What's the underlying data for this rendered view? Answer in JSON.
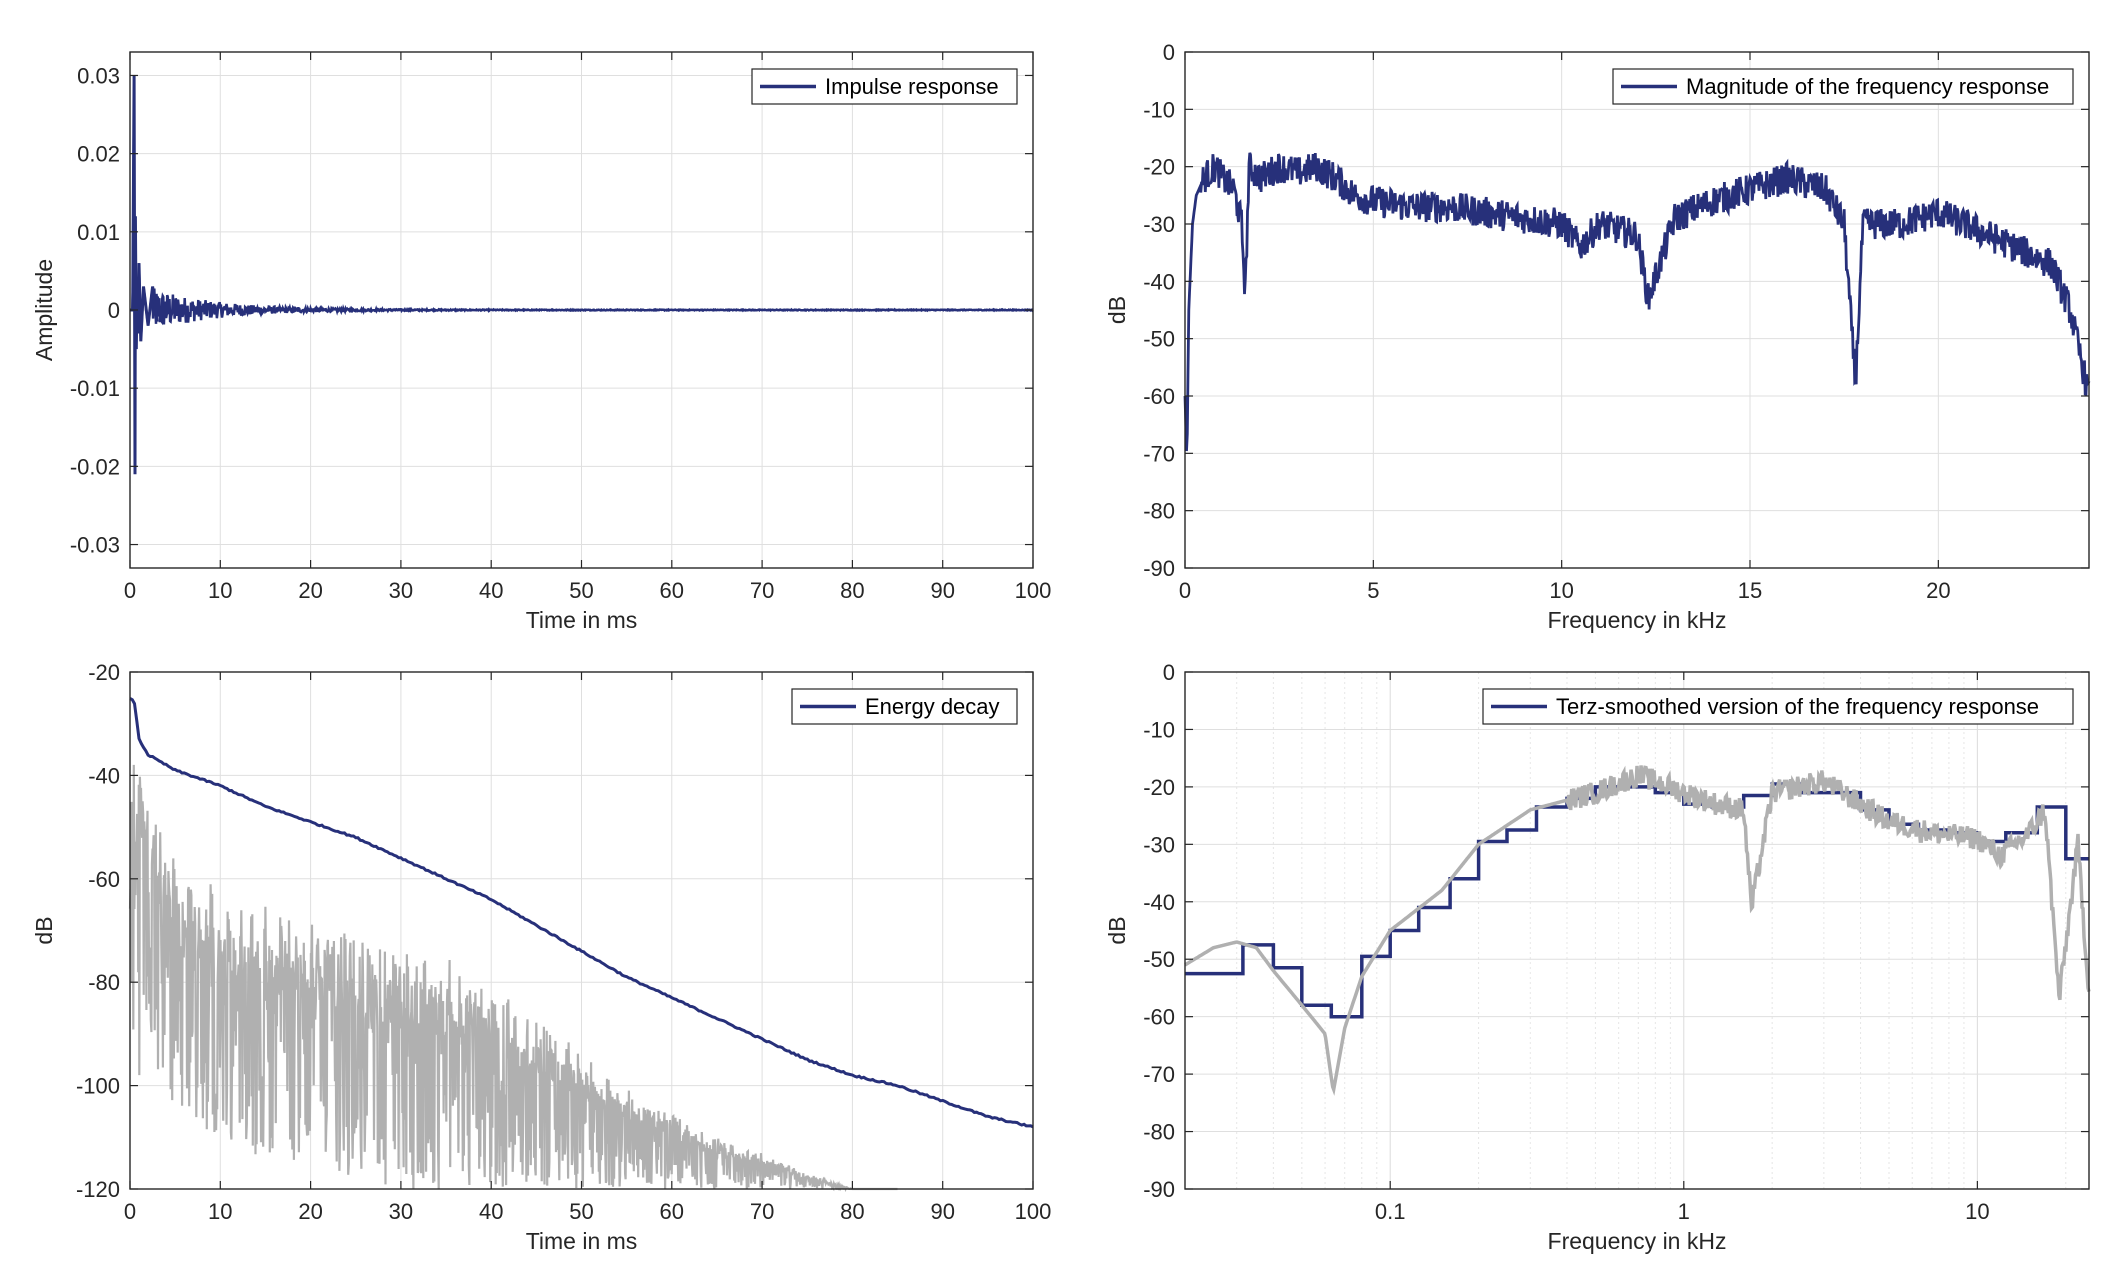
{
  "chart_data": [
    {
      "type": "line",
      "panel": "top-left",
      "xlabel": "Time in ms",
      "ylabel": "Amplitude",
      "xlim": [
        0,
        100
      ],
      "ylim": [
        -0.033,
        0.033
      ],
      "xticks": [
        0,
        10,
        20,
        30,
        40,
        50,
        60,
        70,
        80,
        90,
        100
      ],
      "xtick_labels": [
        "0",
        "10",
        "20",
        "30",
        "40",
        "50",
        "60",
        "70",
        "80",
        "90",
        "100"
      ],
      "yticks": [
        -0.03,
        -0.02,
        -0.01,
        0,
        0.01,
        0.02,
        0.03
      ],
      "ytick_labels": [
        "-0.03",
        "-0.02",
        "-0.01",
        "0",
        "0.01",
        "0.02",
        "0.03"
      ],
      "grid": true,
      "legend_position": "top-right",
      "series": [
        {
          "name": "Impulse response",
          "color": "#27307a",
          "x": [
            0,
            0.3,
            0.45,
            0.55,
            0.6,
            0.7,
            0.8,
            0.9,
            1.0,
            1.2,
            1.5,
            2.0,
            2.5,
            3,
            4,
            5,
            6,
            8,
            10,
            12,
            15,
            20,
            25,
            30,
            40,
            50,
            60,
            80,
            100
          ],
          "y": [
            0,
            0.0,
            0.03,
            -0.021,
            0.012,
            -0.005,
            0.004,
            -0.003,
            0.006,
            -0.004,
            0.003,
            -0.002,
            0.003,
            -0.0015,
            0.002,
            -0.0015,
            0.001,
            -0.001,
            0.001,
            -0.0008,
            0.0005,
            0.0003,
            -0.0002,
            0.0001,
            0.0001,
            0,
            0,
            0,
            0
          ]
        }
      ]
    },
    {
      "type": "line",
      "panel": "top-right",
      "xlabel": "Frequency in kHz",
      "ylabel": "dB",
      "xlim": [
        0,
        24
      ],
      "ylim": [
        -90,
        0
      ],
      "xticks": [
        0,
        5,
        10,
        15,
        20
      ],
      "xtick_labels": [
        "0",
        "5",
        "10",
        "15",
        "20"
      ],
      "yticks": [
        0,
        -10,
        -20,
        -30,
        -40,
        -50,
        -60,
        -70,
        -80,
        -90
      ],
      "ytick_labels": [
        "0",
        "-10",
        "-20",
        "-30",
        "-40",
        "-50",
        "-60",
        "-70",
        "-80",
        "-90"
      ],
      "grid": true,
      "legend_position": "top-right",
      "series": [
        {
          "name": "Magnitude of the frequency response",
          "color": "#27307a",
          "x": [
            0,
            0.05,
            0.1,
            0.2,
            0.3,
            0.5,
            0.8,
            1.0,
            1.3,
            1.5,
            1.6,
            1.7,
            2.0,
            2.5,
            3.0,
            3.5,
            4.0,
            4.5,
            5.0,
            6.0,
            7.0,
            8.0,
            9.0,
            10.0,
            10.5,
            11.0,
            12.0,
            12.3,
            13.0,
            14.0,
            15.0,
            16.0,
            17.0,
            17.5,
            17.8,
            18.0,
            19.0,
            20.0,
            21.0,
            22.0,
            23.0,
            23.5,
            24.0
          ],
          "y": [
            -60,
            -72,
            -45,
            -30,
            -25,
            -22,
            -20,
            -22,
            -24,
            -30,
            -42,
            -20,
            -22,
            -20,
            -21,
            -20,
            -22,
            -25,
            -26,
            -27,
            -27,
            -28,
            -29,
            -30,
            -34,
            -30,
            -32,
            -43,
            -29,
            -26,
            -24,
            -22,
            -24,
            -30,
            -58,
            -30,
            -30,
            -28,
            -31,
            -34,
            -37,
            -45,
            -60
          ]
        }
      ]
    },
    {
      "type": "line",
      "panel": "bottom-left",
      "xlabel": "Time in ms",
      "ylabel": "dB",
      "xlim": [
        0,
        100
      ],
      "ylim": [
        -120,
        -20
      ],
      "xticks": [
        0,
        10,
        20,
        30,
        40,
        50,
        60,
        70,
        80,
        90,
        100
      ],
      "xtick_labels": [
        "0",
        "10",
        "20",
        "30",
        "40",
        "50",
        "60",
        "70",
        "80",
        "90",
        "100"
      ],
      "yticks": [
        -20,
        -40,
        -60,
        -80,
        -100,
        -120
      ],
      "ytick_labels": [
        "-20",
        "-40",
        "-60",
        "-80",
        "-100",
        "-120"
      ],
      "grid": true,
      "legend_position": "top-right",
      "series": [
        {
          "name": "Energy decay",
          "color": "#27307a",
          "x": [
            0,
            0.5,
            1,
            2,
            5,
            10,
            15,
            20,
            25,
            30,
            35,
            40,
            45,
            50,
            55,
            60,
            65,
            70,
            75,
            80,
            85,
            90,
            95,
            100
          ],
          "y": [
            -25,
            -26,
            -33,
            -36,
            -39,
            -42,
            -46,
            -49,
            -52,
            -56,
            -60,
            -64,
            -69,
            -74,
            -79,
            -83,
            -87,
            -91,
            -95,
            -98,
            -100,
            -103,
            -106,
            -108
          ]
        },
        {
          "name": "",
          "color": "#b0b0b0",
          "x": [
            0,
            0.5,
            1,
            2,
            5,
            10,
            15,
            20,
            25,
            30,
            35,
            40,
            45,
            50,
            55,
            60,
            65,
            70,
            75,
            80,
            85
          ],
          "y_upper": [
            -30,
            -28,
            -33,
            -40,
            -55,
            -62,
            -63,
            -67,
            -70,
            -73,
            -75,
            -80,
            -86,
            -93,
            -100,
            -105,
            -110,
            -113,
            -117,
            -120,
            -120
          ],
          "y_lower": [
            -120,
            -105,
            -100,
            -95,
            -105,
            -110,
            -115,
            -115,
            -118,
            -120,
            -120,
            -120,
            -120,
            -120,
            -120,
            -120,
            -120,
            -120,
            -120,
            -120,
            -120
          ]
        }
      ]
    },
    {
      "type": "line",
      "panel": "bottom-right",
      "xlabel": "Frequency in kHz",
      "ylabel": "dB",
      "xscale": "log",
      "xlim": [
        0.02,
        24
      ],
      "ylim": [
        -90,
        0
      ],
      "xticks": [
        0.1,
        1,
        10
      ],
      "xtick_labels": [
        "0.1",
        "1",
        "10"
      ],
      "yticks": [
        0,
        -10,
        -20,
        -30,
        -40,
        -50,
        -60,
        -70,
        -80,
        -90
      ],
      "ytick_labels": [
        "0",
        "-10",
        "-20",
        "-30",
        "-40",
        "-50",
        "-60",
        "-70",
        "-80",
        "-90"
      ],
      "grid": true,
      "legend_position": "top-right",
      "series": [
        {
          "name": "Terz-smoothed version of the frequency response",
          "color": "#27307a",
          "step_edges": [
            0.02,
            0.0315,
            0.04,
            0.05,
            0.063,
            0.08,
            0.1,
            0.125,
            0.16,
            0.2,
            0.25,
            0.315,
            0.4,
            0.5,
            0.63,
            0.8,
            1.0,
            1.25,
            1.6,
            2.0,
            2.5,
            3.15,
            4.0,
            5.0,
            6.3,
            8.0,
            10.0,
            12.5,
            16.0,
            20.0,
            24.0
          ],
          "step_values": [
            -52.5,
            -47.5,
            -51.5,
            -58,
            -60,
            -49.5,
            -45,
            -41,
            -36,
            -29.5,
            -27.5,
            -23.5,
            -22,
            -20,
            -20,
            -21,
            -23,
            -23.5,
            -21.5,
            -19.5,
            -21,
            -21,
            -24,
            -26.5,
            -27.5,
            -28,
            -29.5,
            -28,
            -23.5,
            -32.5
          ]
        },
        {
          "name": "",
          "color": "#b0b0b0",
          "x": [
            0.02,
            0.025,
            0.03,
            0.035,
            0.04,
            0.05,
            0.06,
            0.064,
            0.07,
            0.08,
            0.1,
            0.15,
            0.2,
            0.3,
            0.5,
            0.7,
            0.8,
            1.0,
            1.3,
            1.6,
            1.7,
            2.0,
            3.0,
            4.0,
            5.0,
            7.0,
            10.0,
            12.0,
            15.0,
            17.0,
            19.0,
            22.0,
            24.0
          ],
          "y": [
            -51,
            -48,
            -47,
            -48,
            -52,
            -58,
            -63,
            -73,
            -62,
            -53,
            -45,
            -38,
            -30,
            -24,
            -21,
            -18,
            -19,
            -21,
            -23,
            -24,
            -41,
            -21,
            -19,
            -23,
            -26,
            -28,
            -29,
            -32,
            -28,
            -24,
            -57,
            -30,
            -56
          ]
        }
      ]
    }
  ]
}
